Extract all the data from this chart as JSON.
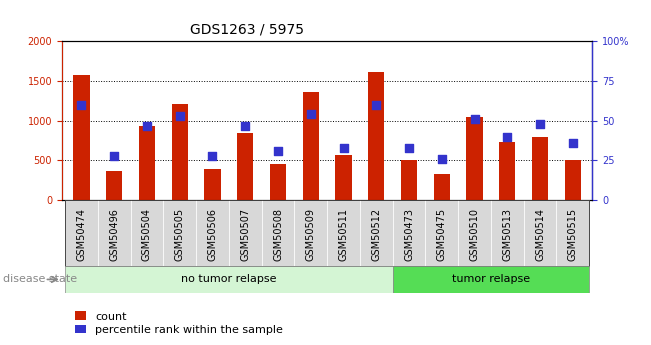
{
  "title": "GDS1263 / 5975",
  "samples": [
    "GSM50474",
    "GSM50496",
    "GSM50504",
    "GSM50505",
    "GSM50506",
    "GSM50507",
    "GSM50508",
    "GSM50509",
    "GSM50511",
    "GSM50512",
    "GSM50473",
    "GSM50475",
    "GSM50510",
    "GSM50513",
    "GSM50514",
    "GSM50515"
  ],
  "counts": [
    1580,
    370,
    940,
    1210,
    390,
    840,
    450,
    1360,
    570,
    1610,
    500,
    330,
    1050,
    730,
    790,
    500
  ],
  "percentiles": [
    60,
    28,
    47,
    53,
    28,
    47,
    31,
    54,
    33,
    60,
    33,
    26,
    51,
    40,
    48,
    36
  ],
  "no_tumor_count": 10,
  "tumor_count": 6,
  "bar_color": "#cc2200",
  "dot_color": "#3333cc",
  "left_axis_color": "#cc2200",
  "right_axis_color": "#3333cc",
  "ylim_left": [
    0,
    2000
  ],
  "ylim_right": [
    0,
    100
  ],
  "yticks_left": [
    0,
    500,
    1000,
    1500,
    2000
  ],
  "yticks_right": [
    0,
    25,
    50,
    75,
    100
  ],
  "no_tumor_label": "no tumor relapse",
  "tumor_label": "tumor relapse",
  "disease_state_label": "disease state",
  "legend_count_label": "count",
  "legend_pct_label": "percentile rank within the sample",
  "no_tumor_bg": "#d4f5d4",
  "tumor_bg": "#55dd55",
  "bar_width": 0.5,
  "dot_size": 40,
  "grid_color": "#000000",
  "xtick_bg": "#d8d8d8",
  "title_fontsize": 10,
  "tick_fontsize": 7,
  "label_fontsize": 8
}
